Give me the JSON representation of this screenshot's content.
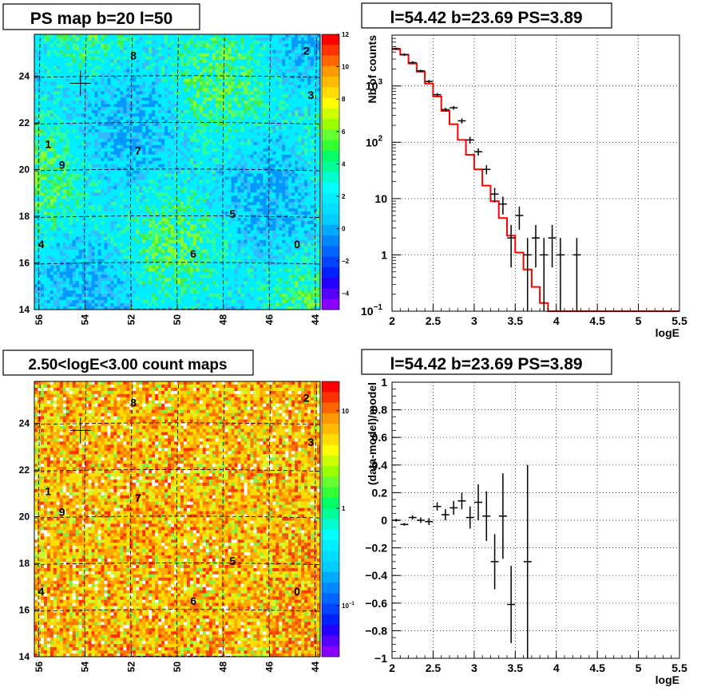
{
  "colors": {
    "model_line": "#ff0000",
    "data_points": "#000000",
    "frame": "#000000",
    "grid": "#000000"
  },
  "chart_data": [
    {
      "type": "heatmap",
      "title": "PS map b=20 l=50",
      "x_ticks": [
        "56",
        "54",
        "52",
        "50",
        "48",
        "46",
        "44"
      ],
      "y_ticks": [
        "14",
        "16",
        "18",
        "20",
        "22",
        "24"
      ],
      "xlim": [
        56.2,
        43.8
      ],
      "ylim": [
        14,
        25.8
      ],
      "color_scale": {
        "min": -5,
        "max": 12,
        "ticks": [
          "12",
          "10",
          "8",
          "6",
          "4",
          "2",
          "0",
          "−2",
          "−4"
        ]
      },
      "source_labels": [
        {
          "id": "8",
          "x": 51.9,
          "y": 24.9
        },
        {
          "id": "2",
          "x": 44.4,
          "y": 25.1
        },
        {
          "id": "3",
          "x": 44.2,
          "y": 23.2
        },
        {
          "id": "1",
          "x": 55.6,
          "y": 21.1
        },
        {
          "id": "7",
          "x": 51.7,
          "y": 20.8
        },
        {
          "id": "9",
          "x": 55.0,
          "y": 20.2
        },
        {
          "id": "5",
          "x": 47.6,
          "y": 18.1
        },
        {
          "id": "4",
          "x": 55.9,
          "y": 16.8
        },
        {
          "id": "6",
          "x": 49.3,
          "y": 16.4
        },
        {
          "id": "0",
          "x": 44.8,
          "y": 16.8
        }
      ],
      "marker": {
        "x": 54.2,
        "y": 23.7
      }
    },
    {
      "type": "line",
      "title": "l=54.42 b=23.69 PS=3.89",
      "xlabel": "logE",
      "ylabel": "Nb of counts",
      "yscale": "log",
      "xlim": [
        2,
        5.5
      ],
      "ylim": [
        0.1,
        8000
      ],
      "x_ticks": [
        "2",
        "2.5",
        "3",
        "3.5",
        "4",
        "4.5",
        "5",
        "5.5"
      ],
      "y_ticks": [
        {
          "v": 0.1,
          "label": "10",
          "sup": "−1"
        },
        {
          "v": 1,
          "label": "1",
          "sup": ""
        },
        {
          "v": 10,
          "label": "10",
          "sup": ""
        },
        {
          "v": 100,
          "label": "10",
          "sup": "2"
        },
        {
          "v": 1000,
          "label": "10",
          "sup": "3"
        }
      ],
      "grid": true,
      "series": [
        {
          "kind": "step",
          "x_edges": [
            2.0,
            2.1,
            2.2,
            2.3,
            2.4,
            2.5,
            2.6,
            2.7,
            2.8,
            2.9,
            3.0,
            3.1,
            3.2,
            3.3,
            3.4,
            3.5,
            3.6,
            3.7,
            3.8,
            3.9,
            4.0,
            5.5
          ],
          "values": [
            4500,
            3600,
            2500,
            1800,
            1100,
            650,
            360,
            210,
            110,
            60,
            33,
            17,
            9,
            4.5,
            2.2,
            1.1,
            0.55,
            0.27,
            0.14,
            0.1,
            0.1
          ]
        },
        {
          "kind": "errorbar",
          "points": [
            {
              "x": 2.05,
              "y": 4600,
              "lo": 4400,
              "hi": 4800
            },
            {
              "x": 2.15,
              "y": 3600,
              "lo": 3400,
              "hi": 3800
            },
            {
              "x": 2.25,
              "y": 2600,
              "lo": 2450,
              "hi": 2750
            },
            {
              "x": 2.35,
              "y": 1850,
              "lo": 1750,
              "hi": 1950
            },
            {
              "x": 2.45,
              "y": 1200,
              "lo": 1120,
              "hi": 1280
            },
            {
              "x": 2.55,
              "y": 700,
              "lo": 650,
              "hi": 750
            },
            {
              "x": 2.65,
              "y": 380,
              "lo": 350,
              "hi": 410
            },
            {
              "x": 2.75,
              "y": 410,
              "lo": 380,
              "hi": 440
            },
            {
              "x": 2.85,
              "y": 240,
              "lo": 215,
              "hi": 265
            },
            {
              "x": 2.95,
              "y": 110,
              "lo": 95,
              "hi": 125
            },
            {
              "x": 3.05,
              "y": 68,
              "lo": 58,
              "hi": 78
            },
            {
              "x": 3.15,
              "y": 33,
              "lo": 27,
              "hi": 39
            },
            {
              "x": 3.25,
              "y": 12,
              "lo": 8.5,
              "hi": 15.5
            },
            {
              "x": 3.35,
              "y": 8,
              "lo": 5.2,
              "hi": 10.8
            },
            {
              "x": 3.45,
              "y": 2,
              "lo": 0.6,
              "hi": 3.4
            },
            {
              "x": 3.55,
              "y": 5,
              "lo": 2.8,
              "hi": 7.2
            },
            {
              "x": 3.65,
              "y": 1,
              "lo": 0.1,
              "hi": 2.0
            },
            {
              "x": 3.75,
              "y": 2,
              "lo": 0.6,
              "hi": 3.4
            },
            {
              "x": 3.85,
              "y": 1,
              "lo": 0.1,
              "hi": 2.0
            },
            {
              "x": 3.95,
              "y": 2,
              "lo": 0.6,
              "hi": 3.4
            },
            {
              "x": 4.05,
              "y": 1,
              "lo": 0.1,
              "hi": 2.0
            },
            {
              "x": 4.25,
              "y": 1,
              "lo": 0.1,
              "hi": 2.0
            }
          ]
        }
      ]
    },
    {
      "type": "heatmap",
      "title": "2.50<logE<3.00 count maps",
      "x_ticks": [
        "56",
        "54",
        "52",
        "50",
        "48",
        "46",
        "44"
      ],
      "y_ticks": [
        "14",
        "16",
        "18",
        "20",
        "22",
        "24"
      ],
      "xlim": [
        56.2,
        43.8
      ],
      "ylim": [
        14,
        25.8
      ],
      "color_scale": {
        "scale": "log",
        "ticks": [
          {
            "label": "10",
            "v": 10
          },
          {
            "label": "1",
            "v": 1
          },
          {
            "label": "10",
            "sup": "−1",
            "v": 0.1
          }
        ]
      },
      "source_labels": [
        {
          "id": "8",
          "x": 51.9,
          "y": 24.9
        },
        {
          "id": "2",
          "x": 44.4,
          "y": 25.1
        },
        {
          "id": "3",
          "x": 44.2,
          "y": 23.2
        },
        {
          "id": "1",
          "x": 55.6,
          "y": 21.1
        },
        {
          "id": "7",
          "x": 51.7,
          "y": 20.8
        },
        {
          "id": "9",
          "x": 55.0,
          "y": 20.2
        },
        {
          "id": "5",
          "x": 47.6,
          "y": 18.1
        },
        {
          "id": "4",
          "x": 55.9,
          "y": 16.8
        },
        {
          "id": "6",
          "x": 49.3,
          "y": 16.4
        },
        {
          "id": "0",
          "x": 44.8,
          "y": 16.8
        }
      ],
      "marker": {
        "x": 54.2,
        "y": 23.7
      }
    },
    {
      "type": "scatter",
      "title": "l=54.42 b=23.69 PS=3.89",
      "xlabel": "logE",
      "ylabel": "(data-model)/model",
      "xlim": [
        2,
        5.5
      ],
      "ylim": [
        -1,
        1
      ],
      "x_ticks": [
        "2",
        "2.5",
        "3",
        "3.5",
        "4",
        "4.5",
        "5",
        "5.5"
      ],
      "y_ticks": [
        "1",
        "0.8",
        "0.6",
        "0.4",
        "0.2",
        "0",
        "−0.2",
        "−0.4",
        "−0.6",
        "−0.8",
        "−1"
      ],
      "grid": true,
      "points": [
        {
          "x": 2.05,
          "y": 0.0,
          "err": 0.01
        },
        {
          "x": 2.15,
          "y": -0.03,
          "err": 0.01
        },
        {
          "x": 2.25,
          "y": 0.02,
          "err": 0.015
        },
        {
          "x": 2.35,
          "y": 0.0,
          "err": 0.02
        },
        {
          "x": 2.45,
          "y": -0.01,
          "err": 0.025
        },
        {
          "x": 2.55,
          "y": 0.1,
          "err": 0.03
        },
        {
          "x": 2.65,
          "y": 0.04,
          "err": 0.04
        },
        {
          "x": 2.75,
          "y": 0.09,
          "err": 0.05
        },
        {
          "x": 2.85,
          "y": 0.14,
          "err": 0.06
        },
        {
          "x": 2.95,
          "y": 0.02,
          "err": 0.08
        },
        {
          "x": 3.05,
          "y": 0.13,
          "err": 0.13
        },
        {
          "x": 3.15,
          "y": 0.03,
          "err": 0.18
        },
        {
          "x": 3.25,
          "y": -0.3,
          "err": 0.2
        },
        {
          "x": 3.35,
          "y": 0.03,
          "err": 0.31
        },
        {
          "x": 3.45,
          "y": -0.61,
          "err": 0.28
        },
        {
          "x": 3.65,
          "y": -0.3,
          "err": 0.7
        }
      ]
    }
  ]
}
